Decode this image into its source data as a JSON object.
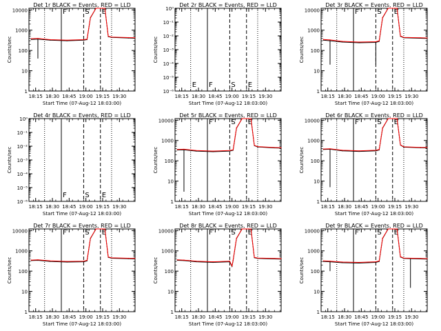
{
  "figure": {
    "start_time_label": "Start Time (07-Aug-12 18:03:00)",
    "y_axis_label": "Counts/sec",
    "x_tick_labels": [
      "18:15",
      "18:30",
      "18:45",
      "19:00",
      "19:15",
      "19:30"
    ],
    "colors": {
      "events": "#000000",
      "lld": "#ff0000",
      "background": "#ffffff"
    }
  },
  "chart_data": [
    {
      "type": "line",
      "title": "Det 1r BLACK = Events, RED = LLD",
      "xlabel": "Start Time (07-Aug-12 18:03:00)",
      "ylabel": "Counts/sec",
      "scale": "log",
      "x_unit": "minutes after 18:03:00",
      "xlim": [
        6,
        101
      ],
      "ylim": [
        1,
        12000
      ],
      "y_tick_labels": [
        "1",
        "10",
        "100",
        "1000",
        "10000"
      ],
      "y_tick_values": [
        1,
        10,
        100,
        1000,
        10000
      ],
      "markers": [
        {
          "time": "18:23",
          "style": "dotted",
          "label": ""
        },
        {
          "time": "18:38",
          "style": "solid",
          "label": "F"
        },
        {
          "time": "18:58",
          "style": "dashed",
          "label": "S"
        },
        {
          "time": "19:13",
          "style": "dashed",
          "label": "E"
        },
        {
          "time": "19:23",
          "style": "dotted",
          "label": ""
        }
      ],
      "series": [
        {
          "name": "Events",
          "color": "#000000",
          "x": [
            8,
            14,
            25,
            40,
            55,
            58,
            61,
            66,
            72,
            74,
            77,
            80,
            95,
            101
          ],
          "y": [
            350,
            360,
            320,
            300,
            320,
            340,
            4000,
            12000,
            12000,
            12000,
            480,
            440,
            410,
            400
          ]
        },
        {
          "name": "LLD",
          "color": "#ff0000",
          "x": [
            8,
            14,
            25,
            40,
            55,
            58,
            61,
            66,
            72,
            74,
            77,
            80,
            95,
            101
          ],
          "y": [
            380,
            390,
            340,
            320,
            340,
            360,
            4200,
            12000,
            12000,
            12000,
            500,
            460,
            430,
            420
          ]
        }
      ],
      "drops": [
        {
          "series": "Events",
          "x": 14,
          "y": 40
        }
      ]
    },
    {
      "type": "line",
      "title": "Det 2r BLACK = Events, RED = LLD",
      "xlabel": "Start Time (07-Aug-12 18:03:00)",
      "ylabel": "Counts/sec",
      "scale": "log",
      "x_unit": "minutes after 18:03:00",
      "xlim": [
        6,
        101
      ],
      "ylim": [
        1e-06,
        1
      ],
      "y_tick_labels": [
        "10⁻⁶",
        "10⁻⁵",
        "10⁻⁴",
        "10⁻³",
        "10⁻²",
        "10⁻¹",
        "10⁰"
      ],
      "y_tick_values": [
        1e-06,
        1e-05,
        0.0001,
        0.001,
        0.01,
        0.1,
        1
      ],
      "markers": [
        {
          "time": "18:23",
          "style": "dotted",
          "label": "E"
        },
        {
          "time": "18:38",
          "style": "solid",
          "label": "F"
        },
        {
          "time": "18:58",
          "style": "dashed",
          "label": "S"
        },
        {
          "time": "19:13",
          "style": "dashed",
          "label": "E"
        },
        {
          "time": "19:23",
          "style": "dotted",
          "label": ""
        }
      ],
      "series": []
    },
    {
      "type": "line",
      "title": "Det 3r BLACK = Events, RED = LLD",
      "xlabel": "Start Time (07-Aug-12 18:03:00)",
      "ylabel": "Counts/sec",
      "scale": "log",
      "x_unit": "minutes after 18:03:00",
      "xlim": [
        6,
        101
      ],
      "ylim": [
        1,
        12000
      ],
      "y_tick_labels": [
        "1",
        "10",
        "100",
        "1000",
        "10000"
      ],
      "y_tick_values": [
        1,
        10,
        100,
        1000,
        10000
      ],
      "markers": [
        {
          "time": "18:23",
          "style": "dotted",
          "label": ""
        },
        {
          "time": "18:38",
          "style": "solid",
          "label": "F"
        },
        {
          "time": "18:58",
          "style": "dashed",
          "label": "S"
        },
        {
          "time": "19:13",
          "style": "dashed",
          "label": "E"
        },
        {
          "time": "19:23",
          "style": "dotted",
          "label": ""
        }
      ],
      "series": [
        {
          "name": "Events",
          "color": "#000000",
          "x": [
            8,
            14,
            25,
            40,
            55,
            58,
            61,
            66,
            72,
            74,
            77,
            80,
            95,
            101
          ],
          "y": [
            320,
            300,
            260,
            240,
            250,
            280,
            4000,
            12000,
            12000,
            12000,
            500,
            420,
            400,
            390
          ]
        },
        {
          "name": "LLD",
          "color": "#ff0000",
          "x": [
            8,
            14,
            25,
            40,
            55,
            58,
            61,
            66,
            72,
            74,
            77,
            80,
            95,
            101
          ],
          "y": [
            350,
            330,
            280,
            260,
            270,
            300,
            4200,
            12000,
            12000,
            12000,
            520,
            440,
            420,
            410
          ]
        }
      ],
      "drops": [
        {
          "series": "Events",
          "x": 14,
          "y": 20
        },
        {
          "series": "Events",
          "x": 55,
          "y": 20
        }
      ]
    },
    {
      "type": "line",
      "title": "Det 4r BLACK = Events, RED = LLD",
      "xlabel": "Start Time (07-Aug-12 18:03:00)",
      "ylabel": "Counts/sec",
      "scale": "log",
      "x_unit": "minutes after 18:03:00",
      "xlim": [
        6,
        101
      ],
      "ylim": [
        1e-06,
        1
      ],
      "y_tick_labels": [
        "10⁻⁶",
        "10⁻⁵",
        "10⁻⁴",
        "10⁻³",
        "10⁻²",
        "10⁻¹",
        "10⁰"
      ],
      "y_tick_values": [
        1e-06,
        1e-05,
        0.0001,
        0.001,
        0.01,
        0.1,
        1
      ],
      "markers": [
        {
          "time": "18:23",
          "style": "dotted",
          "label": ""
        },
        {
          "time": "18:38",
          "style": "solid",
          "label": "F"
        },
        {
          "time": "18:58",
          "style": "dashed",
          "label": "S"
        },
        {
          "time": "19:13",
          "style": "dashed",
          "label": "E"
        },
        {
          "time": "19:23",
          "style": "dotted",
          "label": ""
        }
      ],
      "series": []
    },
    {
      "type": "line",
      "title": "Det 5r BLACK = Events, RED = LLD",
      "xlabel": "Start Time (07-Aug-12 18:03:00)",
      "ylabel": "Counts/sec",
      "scale": "log",
      "x_unit": "minutes after 18:03:00",
      "xlim": [
        6,
        101
      ],
      "ylim": [
        1,
        12000
      ],
      "y_tick_labels": [
        "1",
        "10",
        "100",
        "1000",
        "10000"
      ],
      "y_tick_values": [
        1,
        10,
        100,
        1000,
        10000
      ],
      "markers": [
        {
          "time": "18:23",
          "style": "dotted",
          "label": ""
        },
        {
          "time": "18:38",
          "style": "solid",
          "label": "F"
        },
        {
          "time": "18:58",
          "style": "dashed",
          "label": "S"
        },
        {
          "time": "19:13",
          "style": "dashed",
          "label": "E"
        },
        {
          "time": "19:23",
          "style": "dotted",
          "label": ""
        }
      ],
      "series": [
        {
          "name": "Events",
          "color": "#000000",
          "x": [
            8,
            14,
            25,
            40,
            55,
            58,
            61,
            66,
            72,
            74,
            77,
            80,
            95,
            101
          ],
          "y": [
            340,
            350,
            300,
            280,
            300,
            330,
            4000,
            12000,
            12000,
            12000,
            560,
            480,
            430,
            420
          ]
        },
        {
          "name": "LLD",
          "color": "#ff0000",
          "x": [
            8,
            14,
            25,
            40,
            55,
            58,
            61,
            66,
            72,
            74,
            77,
            80,
            95,
            101
          ],
          "y": [
            360,
            370,
            320,
            300,
            320,
            350,
            4200,
            12000,
            12000,
            12000,
            580,
            500,
            450,
            440
          ]
        }
      ],
      "drops": [
        {
          "series": "Events",
          "x": 14,
          "y": 3
        }
      ]
    },
    {
      "type": "line",
      "title": "Det 6r BLACK = Events, RED = LLD",
      "xlabel": "Start Time (07-Aug-12 18:03:00)",
      "ylabel": "Counts/sec",
      "scale": "log",
      "x_unit": "minutes after 18:03:00",
      "xlim": [
        6,
        101
      ],
      "ylim": [
        1,
        12000
      ],
      "y_tick_labels": [
        "1",
        "10",
        "100",
        "1000",
        "10000"
      ],
      "y_tick_values": [
        1,
        10,
        100,
        1000,
        10000
      ],
      "markers": [
        {
          "time": "18:23",
          "style": "dotted",
          "label": ""
        },
        {
          "time": "18:38",
          "style": "solid",
          "label": "F"
        },
        {
          "time": "18:58",
          "style": "dashed",
          "label": "S"
        },
        {
          "time": "19:13",
          "style": "dashed",
          "label": "E"
        },
        {
          "time": "19:23",
          "style": "dotted",
          "label": ""
        }
      ],
      "series": [
        {
          "name": "Events",
          "color": "#000000",
          "x": [
            8,
            14,
            25,
            40,
            55,
            58,
            61,
            66,
            72,
            74,
            77,
            80,
            95,
            101
          ],
          "y": [
            360,
            370,
            310,
            290,
            310,
            340,
            4000,
            12000,
            12000,
            12000,
            600,
            470,
            440,
            430
          ]
        },
        {
          "name": "LLD",
          "color": "#ff0000",
          "x": [
            8,
            14,
            25,
            40,
            55,
            58,
            61,
            66,
            72,
            74,
            77,
            80,
            95,
            101
          ],
          "y": [
            380,
            390,
            330,
            310,
            330,
            360,
            4200,
            12000,
            12000,
            12000,
            620,
            490,
            460,
            450
          ]
        }
      ],
      "drops": [
        {
          "series": "Events",
          "x": 14,
          "y": 5
        }
      ]
    },
    {
      "type": "line",
      "title": "Det 7r BLACK = Events, RED = LLD",
      "xlabel": "Start Time (07-Aug-12 18:03:00)",
      "ylabel": "Counts/sec",
      "scale": "log",
      "x_unit": "minutes after 18:03:00",
      "xlim": [
        6,
        101
      ],
      "ylim": [
        1,
        12000
      ],
      "y_tick_labels": [
        "1",
        "10",
        "100",
        "1000",
        "10000"
      ],
      "y_tick_values": [
        1,
        10,
        100,
        1000,
        10000
      ],
      "markers": [
        {
          "time": "18:23",
          "style": "dotted",
          "label": ""
        },
        {
          "time": "18:38",
          "style": "solid",
          "label": "F"
        },
        {
          "time": "18:58",
          "style": "dashed",
          "label": "S"
        },
        {
          "time": "19:13",
          "style": "dashed",
          "label": "E"
        },
        {
          "time": "19:23",
          "style": "dotted",
          "label": ""
        }
      ],
      "series": [
        {
          "name": "Events",
          "color": "#000000",
          "x": [
            8,
            14,
            25,
            40,
            55,
            58,
            61,
            66,
            72,
            74,
            77,
            80,
            95,
            101
          ],
          "y": [
            330,
            340,
            300,
            280,
            290,
            320,
            4000,
            12000,
            12000,
            12000,
            480,
            430,
            410,
            400
          ]
        },
        {
          "name": "LLD",
          "color": "#ff0000",
          "x": [
            8,
            14,
            25,
            40,
            55,
            58,
            61,
            66,
            72,
            74,
            77,
            80,
            95,
            101
          ],
          "y": [
            350,
            360,
            320,
            300,
            310,
            340,
            4200,
            12000,
            12000,
            12000,
            500,
            450,
            430,
            420
          ]
        }
      ],
      "drops": []
    },
    {
      "type": "line",
      "title": "Det 8r BLACK = Events, RED = LLD",
      "xlabel": "Start Time (07-Aug-12 18:03:00)",
      "ylabel": "Counts/sec",
      "scale": "log",
      "x_unit": "minutes after 18:03:00",
      "xlim": [
        6,
        101
      ],
      "ylim": [
        1,
        12000
      ],
      "y_tick_labels": [
        "1",
        "10",
        "100",
        "1000",
        "10000"
      ],
      "y_tick_values": [
        1,
        10,
        100,
        1000,
        10000
      ],
      "markers": [
        {
          "time": "18:23",
          "style": "dotted",
          "label": ""
        },
        {
          "time": "18:38",
          "style": "solid",
          "label": "F"
        },
        {
          "time": "18:58",
          "style": "dashed",
          "label": "S"
        },
        {
          "time": "19:13",
          "style": "dashed",
          "label": "E"
        },
        {
          "time": "19:23",
          "style": "dotted",
          "label": ""
        }
      ],
      "series": [
        {
          "name": "Events",
          "color": "#000000",
          "x": [
            8,
            14,
            25,
            40,
            55,
            57,
            58,
            61,
            66,
            72,
            74,
            77,
            80,
            95,
            101
          ],
          "y": [
            340,
            330,
            290,
            270,
            290,
            170,
            330,
            4000,
            12000,
            12000,
            12000,
            460,
            420,
            400,
            390
          ]
        },
        {
          "name": "LLD",
          "color": "#ff0000",
          "x": [
            8,
            14,
            25,
            40,
            55,
            57,
            58,
            61,
            66,
            72,
            74,
            77,
            80,
            95,
            101
          ],
          "y": [
            360,
            350,
            310,
            290,
            310,
            180,
            350,
            4200,
            12000,
            12000,
            12000,
            480,
            440,
            420,
            410
          ]
        }
      ],
      "drops": []
    },
    {
      "type": "line",
      "title": "Det 9r BLACK = Events, RED = LLD",
      "xlabel": "Start Time (07-Aug-12 18:03:00)",
      "ylabel": "Counts/sec",
      "scale": "log",
      "x_unit": "minutes after 18:03:00",
      "xlim": [
        6,
        101
      ],
      "ylim": [
        1,
        12000
      ],
      "y_tick_labels": [
        "1",
        "10",
        "100",
        "1000",
        "10000"
      ],
      "y_tick_values": [
        1,
        10,
        100,
        1000,
        10000
      ],
      "markers": [
        {
          "time": "18:23",
          "style": "dotted",
          "label": ""
        },
        {
          "time": "18:38",
          "style": "solid",
          "label": "F"
        },
        {
          "time": "18:58",
          "style": "dashed",
          "label": "S"
        },
        {
          "time": "19:13",
          "style": "dashed",
          "label": "E"
        },
        {
          "time": "19:23",
          "style": "dotted",
          "label": ""
        }
      ],
      "series": [
        {
          "name": "Events",
          "color": "#000000",
          "x": [
            8,
            14,
            25,
            40,
            55,
            58,
            61,
            66,
            72,
            74,
            77,
            80,
            95,
            101
          ],
          "y": [
            300,
            290,
            260,
            250,
            270,
            300,
            4000,
            12000,
            12000,
            12000,
            500,
            420,
            400,
            390
          ]
        },
        {
          "name": "LLD",
          "color": "#ff0000",
          "x": [
            8,
            14,
            25,
            40,
            55,
            58,
            61,
            66,
            72,
            74,
            77,
            80,
            95,
            101
          ],
          "y": [
            320,
            310,
            280,
            270,
            290,
            320,
            4200,
            12000,
            12000,
            12000,
            520,
            440,
            420,
            410
          ]
        }
      ],
      "drops": [
        {
          "series": "Events",
          "x": 14,
          "y": 100
        },
        {
          "series": "Events",
          "x": 86,
          "y": 15
        }
      ]
    }
  ]
}
